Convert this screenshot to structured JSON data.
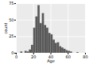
{
  "chart_data": {
    "type": "histogram",
    "x_label": "Age",
    "y_label": "count",
    "bins": [
      5,
      7.5,
      10,
      12.5,
      15,
      17.5,
      20,
      22.5,
      25,
      27.5,
      30,
      32.5,
      35,
      37.5,
      40,
      42.5,
      45,
      47.5,
      50,
      52.5,
      55,
      57.5,
      60,
      62.5,
      65,
      67.5,
      70,
      72.5
    ],
    "values": [
      2,
      0,
      3,
      2,
      5,
      12,
      38,
      55,
      72,
      45,
      60,
      42,
      38,
      30,
      28,
      20,
      15,
      16,
      10,
      8,
      6,
      4,
      3,
      2,
      0,
      0,
      1
    ],
    "color": "#595959",
    "xlim": [
      0,
      80
    ],
    "xticks": [
      0,
      20,
      40,
      60,
      80
    ],
    "ylim": [
      0,
      75
    ],
    "yticks": [
      0,
      25,
      50,
      75
    ],
    "grid": true
  }
}
